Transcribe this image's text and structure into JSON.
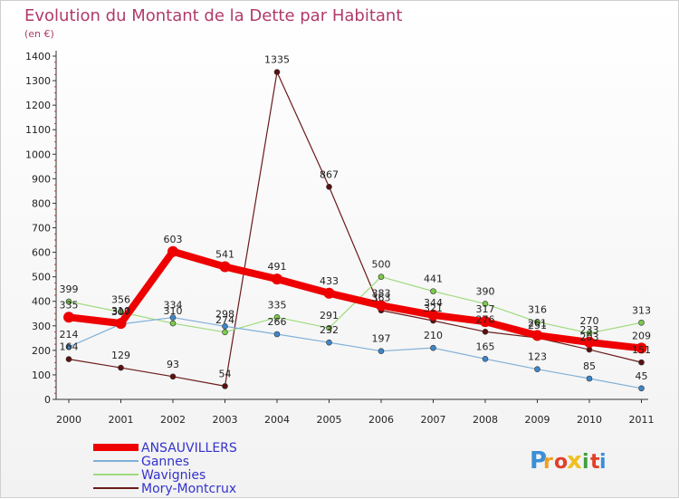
{
  "chart_data": {
    "type": "line",
    "title": "Evolution du Montant de la Dette par Habitant",
    "subtitle": "(en €)",
    "xlabel": "",
    "ylabel": "",
    "x": [
      "2000",
      "2001",
      "2002",
      "2003",
      "2004",
      "2005",
      "2006",
      "2007",
      "2008",
      "2009",
      "2010",
      "2011"
    ],
    "ylim": [
      0,
      1400
    ],
    "yticks": [
      0,
      100,
      200,
      300,
      400,
      500,
      600,
      700,
      800,
      900,
      1000,
      1100,
      1200,
      1300,
      1400
    ],
    "grid": false,
    "legend_position": "bottom-left",
    "series": [
      {
        "name": "Mory-Montcrux",
        "color": "#6b1a1a",
        "marker_color": "#5a1010",
        "width": 1.2,
        "marker": 3,
        "values": [
          164,
          129,
          93,
          54,
          1335,
          867,
          363,
          321,
          276,
          251,
          203,
          151
        ],
        "labels": [
          "164",
          "129",
          "93",
          "54",
          "1335",
          "867",
          "363",
          "321",
          "276",
          "251",
          "203",
          "151"
        ]
      },
      {
        "name": "Wavignies",
        "color": "#9fdb7e",
        "marker_color": "#7cc94f",
        "width": 1.2,
        "marker": 3,
        "values": [
          399,
          356,
          310,
          274,
          335,
          291,
          500,
          441,
          390,
          316,
          270,
          313
        ],
        "labels": [
          "399",
          "356",
          "310",
          "274",
          "335",
          "291",
          "500",
          "441",
          "390",
          "316",
          "270",
          "313"
        ]
      },
      {
        "name": "Gannes",
        "color": "#7fb0d9",
        "marker_color": "#3f86c9",
        "width": 1.2,
        "marker": 3,
        "values": [
          214,
          307,
          334,
          298,
          266,
          232,
          197,
          210,
          165,
          123,
          85,
          45
        ],
        "labels": [
          "214",
          "307",
          "334",
          "298",
          "266",
          "232",
          "197",
          "210",
          "165",
          "123",
          "85",
          "45"
        ]
      },
      {
        "name": "ANSAUVILLERS",
        "color": "#ee0000",
        "marker_color": "#ee0000",
        "width": 8,
        "marker": 6,
        "values": [
          335,
          310,
          603,
          541,
          491,
          433,
          383,
          344,
          317,
          261,
          233,
          209
        ],
        "labels": [
          "335",
          "310",
          "603",
          "541",
          "491",
          "433",
          "383",
          "344",
          "317",
          "261",
          "233",
          "209"
        ]
      }
    ]
  },
  "legend": [
    {
      "name": "ANSAUVILLERS",
      "color": "#ee0000",
      "text_color": "#3333cc"
    },
    {
      "name": "Gannes",
      "color": "#7fb0d9",
      "text_color": "#3333cc"
    },
    {
      "name": "Wavignies",
      "color": "#9fdb7e",
      "text_color": "#3333cc"
    },
    {
      "name": "Mory-Montcrux",
      "color": "#6b1a1a",
      "text_color": "#3333cc"
    }
  ],
  "logo": {
    "letters": [
      "P",
      "r",
      "o",
      "x",
      "i",
      "t",
      "i"
    ],
    "colors": [
      "#3a8fd8",
      "#f0a020",
      "#e0402a",
      "#f0c020",
      "#40a040",
      "#e0402a",
      "#3a8fd8"
    ]
  }
}
